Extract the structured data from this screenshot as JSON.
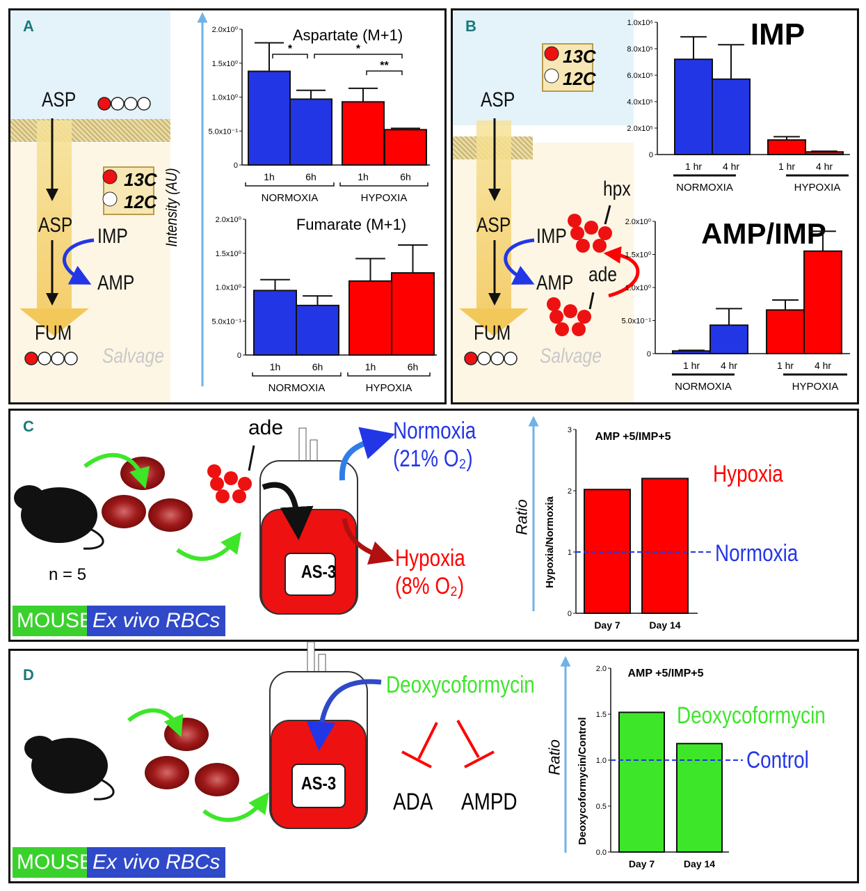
{
  "panels": {
    "A": {
      "label": "A",
      "asp_top": "ASP",
      "asp_mid": "ASP",
      "imp": "IMP",
      "amp": "AMP",
      "fum": "FUM",
      "salvage": "Salvage",
      "legend": {
        "c13": "13C",
        "c12": "12C"
      },
      "yaxis_label": "Intensity (AU)"
    },
    "B": {
      "label": "B",
      "asp_top": "ASP",
      "asp_mid": "ASP",
      "imp": "IMP",
      "amp": "AMP",
      "fum": "FUM",
      "salvage": "Salvage",
      "hpx": "hpx",
      "ade": "ade",
      "legend": {
        "c13": "13C",
        "c12": "12C"
      }
    },
    "C": {
      "label": "C",
      "ade": "ade",
      "normoxia": "Normoxia",
      "normoxia_o2": "(21% O₂)",
      "hypoxia": "Hypoxia",
      "hypoxia_o2": "(8% O₂)",
      "bag_label": "AS-3",
      "n": "n = 5",
      "mouse": "MOUSE",
      "exvivo": "Ex vivo RBCs",
      "chart_legend_hypoxia": "Hypoxia",
      "chart_legend_normoxia": "Normoxia",
      "ratio_label": "Ratio"
    },
    "D": {
      "label": "D",
      "drug": "Deoxycoformycin",
      "ada": "ADA",
      "ampd": "AMPD",
      "bag_label": "AS-3",
      "mouse": "MOUSE",
      "exvivo": "Ex vivo RBCs",
      "chart_legend_drug": "Deoxycoformycin",
      "chart_legend_control": "Control",
      "ratio_label": "Ratio"
    }
  },
  "colors": {
    "normoxia": "#2336e6",
    "hypoxia": "#ff0000",
    "drug": "#3ee62a",
    "control_line": "#2336e6",
    "axis_arrow": "#6fb2e8"
  },
  "chart_data": [
    {
      "id": "aspartate",
      "type": "bar",
      "title": "Aspartate (M+1)",
      "ylim": [
        0,
        2
      ],
      "yticks": [
        0,
        0.5,
        1,
        1.5,
        2
      ],
      "ytick_labels": [
        "0",
        "5.0x10⁻¹",
        "1.0x10⁰",
        "1.5x10⁰",
        "2.0x10⁰"
      ],
      "categories": [
        "1h",
        "6h",
        "1h",
        "6h"
      ],
      "groups": [
        "NORMOXIA",
        "HYPOXIA"
      ],
      "group_style": "bracket",
      "values": [
        1.38,
        0.97,
        0.93,
        0.52
      ],
      "error_upper": [
        1.8,
        1.1,
        1.13,
        0.54
      ],
      "colors": [
        "#2336e6",
        "#2336e6",
        "#ff0000",
        "#ff0000"
      ],
      "significance": [
        {
          "pair": [
            0,
            1
          ],
          "label": "*"
        },
        {
          "pair": [
            1,
            3
          ],
          "label": "*"
        },
        {
          "pair": [
            2,
            3
          ],
          "label": "**"
        }
      ]
    },
    {
      "id": "fumarate",
      "type": "bar",
      "title": "Fumarate (M+1)",
      "ylim": [
        0,
        2
      ],
      "yticks": [
        0,
        0.5,
        1,
        1.5,
        2
      ],
      "ytick_labels": [
        "0",
        "5.0x10⁻¹",
        "1.0x10⁰",
        "1.5x10⁰",
        "2.0x10⁰"
      ],
      "categories": [
        "1h",
        "6h",
        "1h",
        "6h"
      ],
      "groups": [
        "NORMOXIA",
        "HYPOXIA"
      ],
      "group_style": "bracket",
      "values": [
        0.95,
        0.73,
        1.09,
        1.21
      ],
      "error_upper": [
        1.11,
        0.87,
        1.42,
        1.62
      ],
      "colors": [
        "#2336e6",
        "#2336e6",
        "#ff0000",
        "#ff0000"
      ]
    },
    {
      "id": "imp",
      "type": "bar",
      "title": "IMP",
      "ylim": [
        0,
        1000000
      ],
      "yticks": [
        0,
        200000,
        400000,
        600000,
        800000,
        1000000
      ],
      "ytick_labels": [
        "0",
        "2.0x10⁵",
        "4.0x10⁵",
        "6.0x10⁵",
        "8.0x10⁵",
        "1.0x10⁶"
      ],
      "categories": [
        "1 hr",
        "4 hr",
        "1 hr",
        "4 hr"
      ],
      "groups": [
        "NORMOXIA",
        "HYPOXIA"
      ],
      "group_style": "line",
      "values": [
        720000,
        570000,
        110000,
        20000
      ],
      "error_upper": [
        890000,
        830000,
        135000,
        25000
      ],
      "colors": [
        "#2336e6",
        "#2336e6",
        "#ff0000",
        "#ff0000"
      ]
    },
    {
      "id": "amp_imp",
      "type": "bar",
      "title": "AMP/IMP",
      "ylim": [
        0,
        2
      ],
      "yticks": [
        0,
        0.5,
        1,
        1.5,
        2
      ],
      "ytick_labels": [
        "0",
        "5.0x10⁻¹",
        "1.0x10⁰",
        "1.5x10⁰",
        "2.0x10⁰"
      ],
      "categories": [
        "1 hr",
        "4 hr",
        "1 hr",
        "4 hr"
      ],
      "groups": [
        "NORMOXIA",
        "HYPOXIA"
      ],
      "group_style": "line",
      "values": [
        0.04,
        0.43,
        0.66,
        1.55
      ],
      "error_upper": [
        0.05,
        0.68,
        0.81,
        1.85
      ],
      "colors": [
        "#2336e6",
        "#2336e6",
        "#ff0000",
        "#ff0000"
      ]
    },
    {
      "id": "ratio_c",
      "type": "bar",
      "title": "AMP +5/IMP+5",
      "ylabel": "Hypoxia/Normoxia",
      "ylim": [
        0,
        3
      ],
      "yticks": [
        0,
        1,
        2,
        3
      ],
      "ytick_labels": [
        "0",
        "1",
        "2",
        "3"
      ],
      "categories": [
        "Day 7",
        "Day 14"
      ],
      "values": [
        2.02,
        2.2
      ],
      "colors": [
        "#ff0000",
        "#ff0000"
      ],
      "reference_line": 1
    },
    {
      "id": "ratio_d",
      "type": "bar",
      "title": "AMP +5/IMP+5",
      "ylabel": "Deoxycoformycin/Control",
      "ylim": [
        0,
        2
      ],
      "yticks": [
        0,
        0.5,
        1,
        1.5,
        2
      ],
      "ytick_labels": [
        "0.0",
        "0.5",
        "1.0",
        "1.5",
        "2.0"
      ],
      "categories": [
        "Day 7",
        "Day 14"
      ],
      "values": [
        1.52,
        1.18
      ],
      "colors": [
        "#3ee62a",
        "#3ee62a"
      ],
      "reference_line": 1
    }
  ]
}
